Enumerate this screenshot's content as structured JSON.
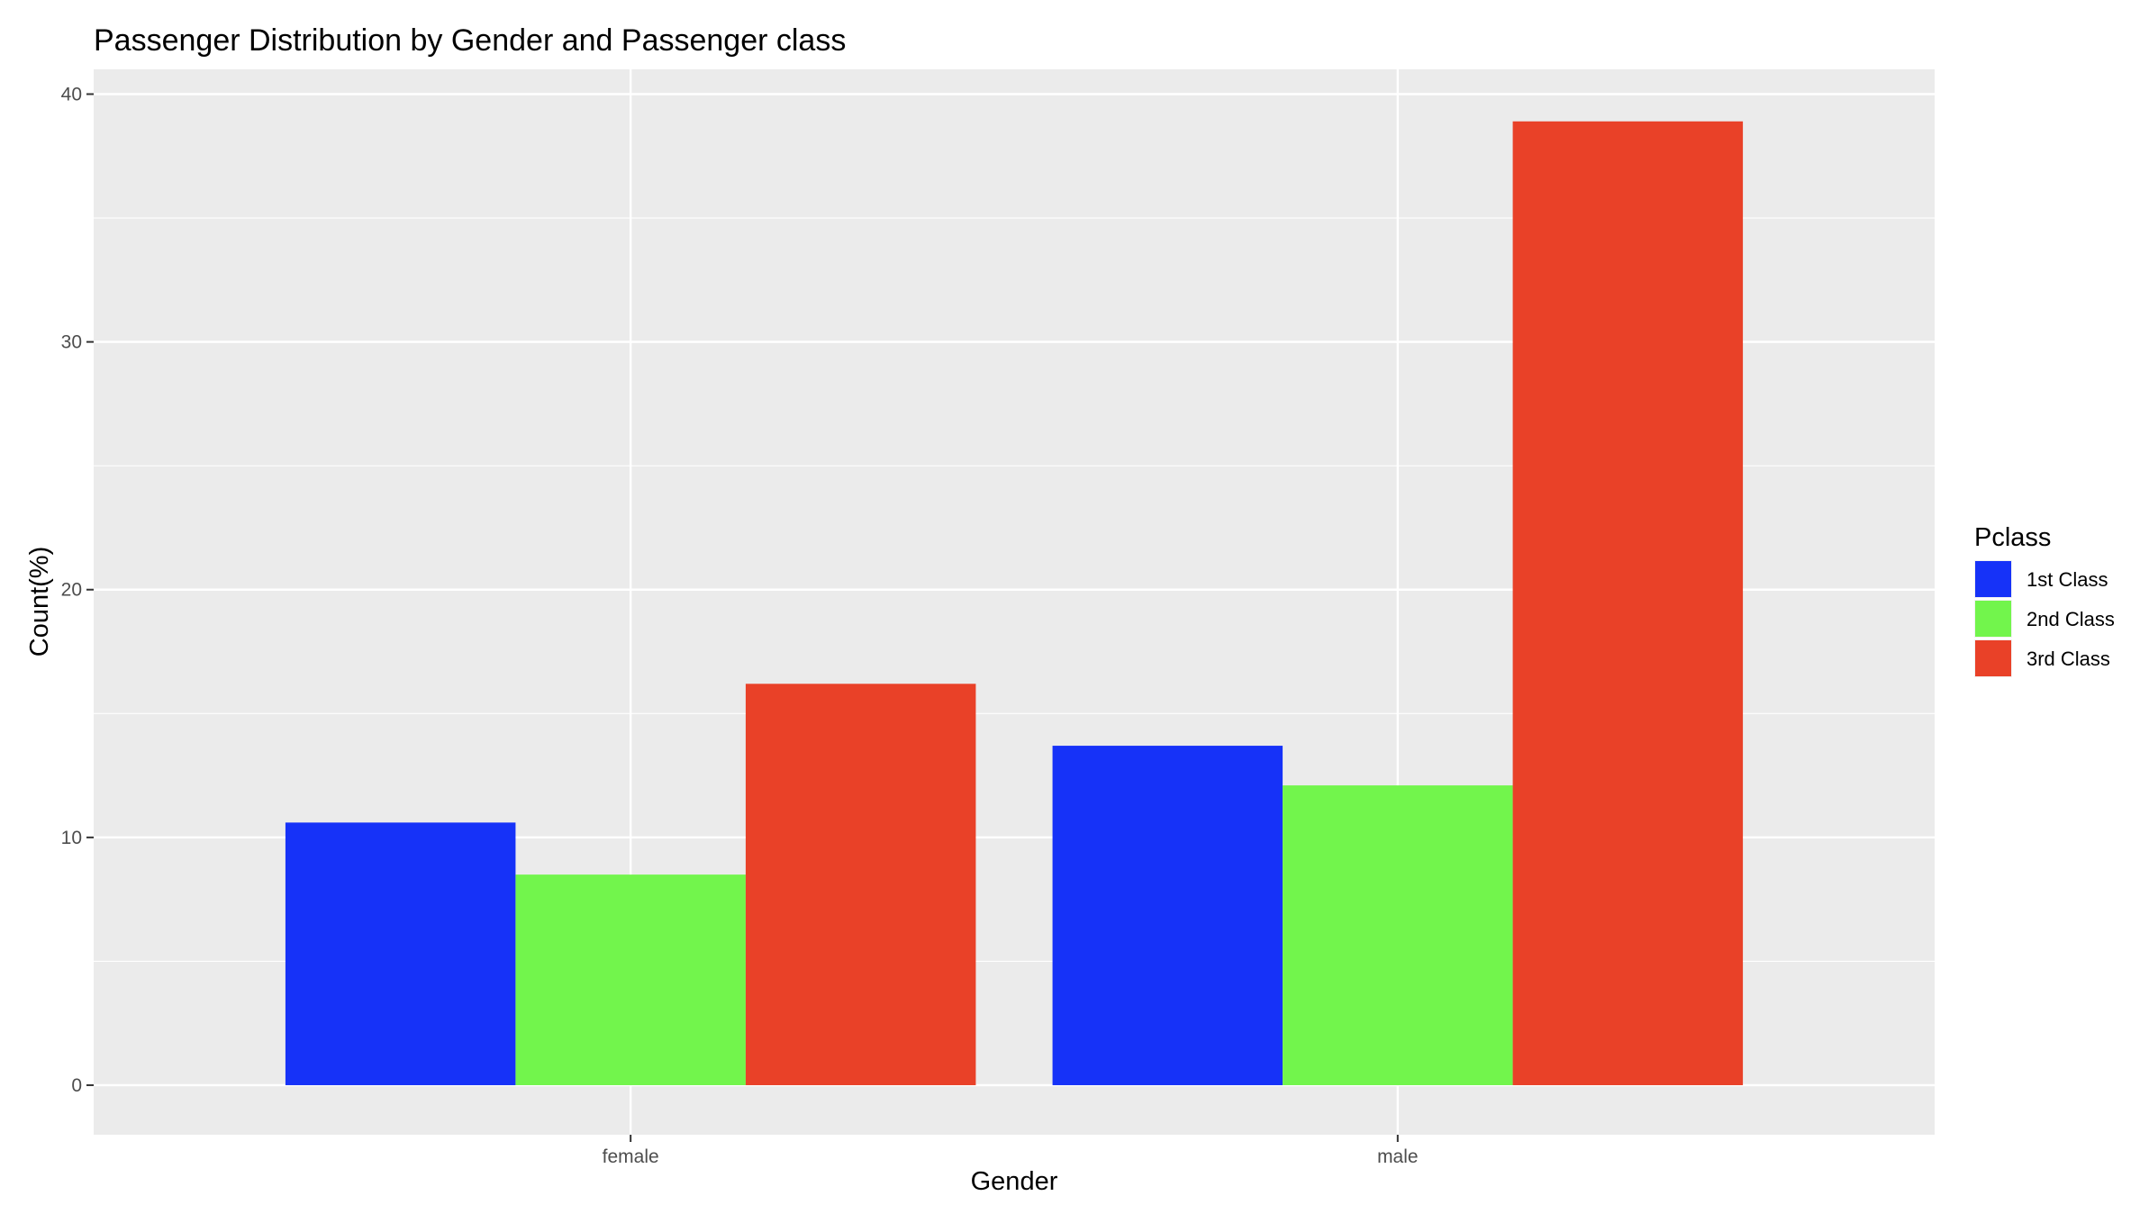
{
  "chart_data": {
    "type": "bar",
    "title": "Passenger Distribution by Gender and Passenger class",
    "xlabel": "Gender",
    "ylabel": "Count(%)",
    "categories": [
      "female",
      "male"
    ],
    "series": [
      {
        "name": "1st Class",
        "color": "#1632F8",
        "values": [
          10.6,
          13.7
        ]
      },
      {
        "name": "2nd Class",
        "color": "#72F54C",
        "values": [
          8.5,
          12.1
        ]
      },
      {
        "name": "3rd Class",
        "color": "#E94128",
        "values": [
          16.2,
          38.9
        ]
      }
    ],
    "ylim": [
      -2,
      41
    ],
    "yticks": [
      0,
      10,
      20,
      30,
      40
    ],
    "grid": true,
    "legend": {
      "title": "Pclass",
      "placement": "right"
    },
    "colors": {
      "panel_background": "#EBEBEB",
      "grid": "#FFFFFF",
      "tick_text": "#4D4D4D"
    }
  }
}
